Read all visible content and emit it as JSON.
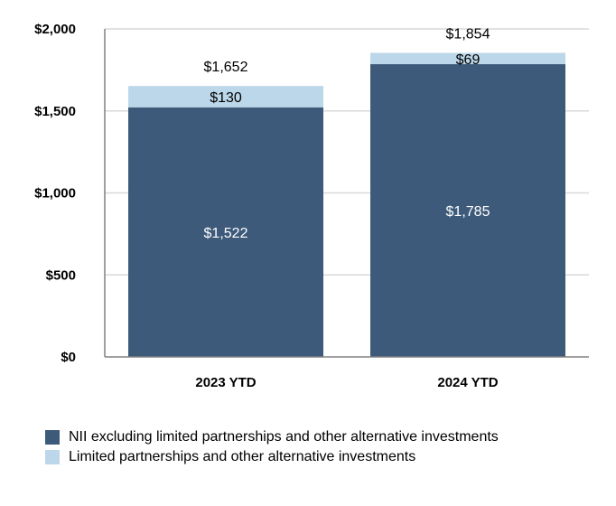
{
  "chart_data": {
    "type": "bar",
    "stacked": true,
    "categories": [
      "2023 YTD",
      "2024 YTD"
    ],
    "series": [
      {
        "name": "NII excluding limited partnerships and other alternative investments",
        "values": [
          1522,
          1785
        ],
        "labels": [
          "$1,522",
          "$1,785"
        ],
        "color": "#3d5a7a",
        "label_color": "#ffffff"
      },
      {
        "name": "Limited partnerships and other alternative investments",
        "values": [
          130,
          69
        ],
        "labels": [
          "$130",
          "$69"
        ],
        "color": "#bcd7e9",
        "label_color": "#000000"
      }
    ],
    "totals": [
      1652,
      1854
    ],
    "total_labels": [
      "$1,652",
      "$1,854"
    ],
    "ylim": [
      0,
      2000
    ],
    "yticks": [
      0,
      500,
      1000,
      1500,
      2000
    ],
    "ytick_labels": [
      "$0",
      "$500",
      "$1,000",
      "$1,500",
      "$2,000"
    ],
    "title": "",
    "xlabel": "",
    "ylabel": "",
    "grid": true,
    "legend_position": "bottom-left"
  }
}
